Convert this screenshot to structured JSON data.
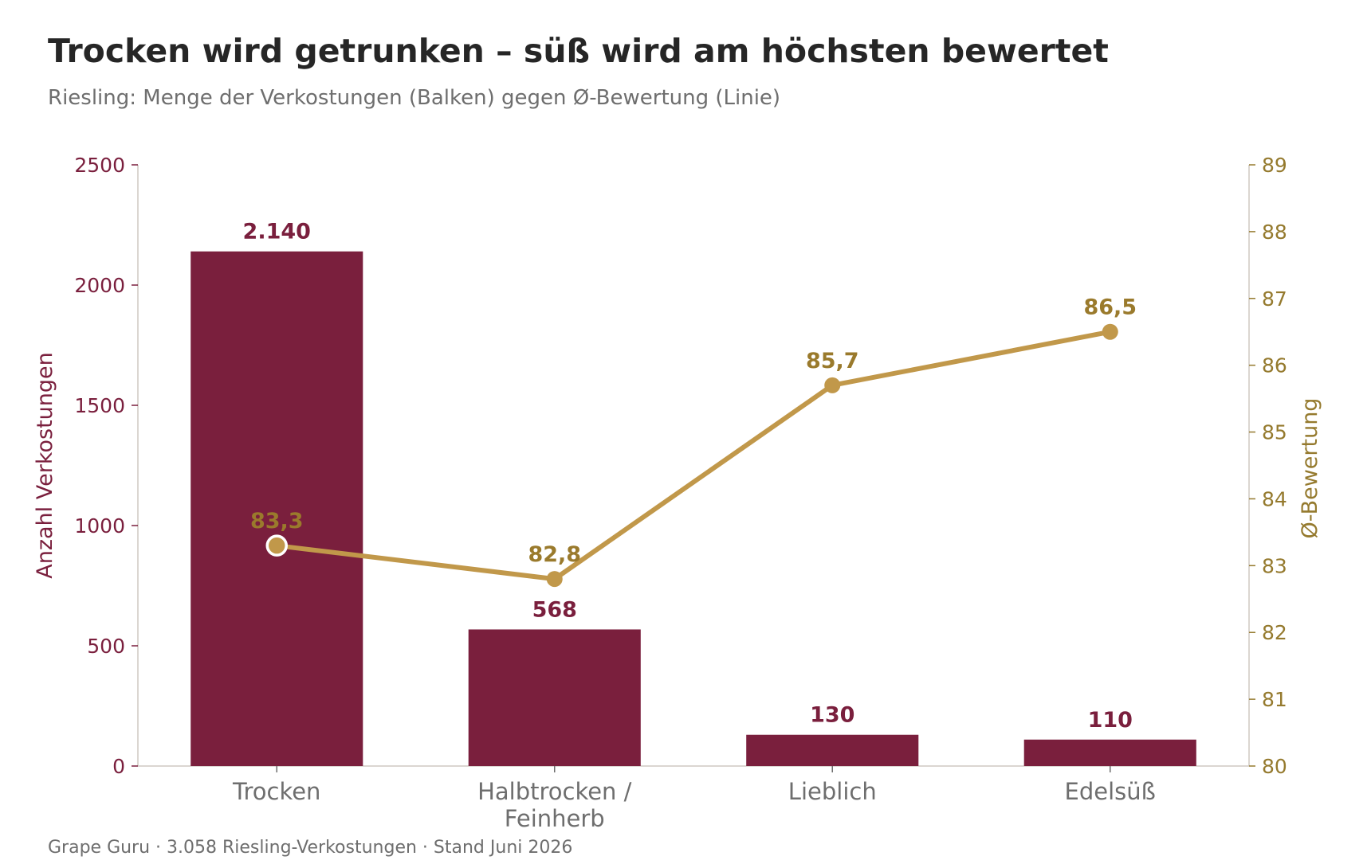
{
  "header": {
    "title": "Trocken wird getrunken – süß wird am höchsten bewertet",
    "subtitle": "Riesling: Menge der Verkostungen (Balken) gegen Ø-Bewertung (Linie)"
  },
  "footer": {
    "source": "Grape Guru · 3.058 Riesling-Verkostungen · Stand Juni 2026"
  },
  "chart_data": {
    "type": "bar",
    "categories": [
      "Trocken",
      "Halbtrocken / Feinherb",
      "Lieblich",
      "Edelsüß"
    ],
    "series": [
      {
        "values": [
          2140,
          568,
          130,
          110
        ],
        "labels": [
          "2.140",
          "568",
          "130",
          "110"
        ],
        "color": "#7a1f3d",
        "axis": "left",
        "kind": "bar"
      },
      {
        "values": [
          83.3,
          82.8,
          85.7,
          86.5
        ],
        "labels": [
          "83,3",
          "82,8",
          "85,7",
          "86,5"
        ],
        "color": "#c1984a",
        "label_color": "#9a7a2c",
        "axis": "right",
        "kind": "line"
      }
    ],
    "ylabel": "Anzahl Verkostungen",
    "y2label": "Ø-Bewertung",
    "ylim": [
      0,
      2500
    ],
    "y2lim": [
      80,
      89
    ],
    "yticks": [
      0,
      500,
      1000,
      1500,
      2000,
      2500
    ],
    "y2ticks": [
      80,
      81,
      82,
      83,
      84,
      85,
      86,
      87,
      88,
      89
    ],
    "grid": false,
    "legend": "none"
  }
}
